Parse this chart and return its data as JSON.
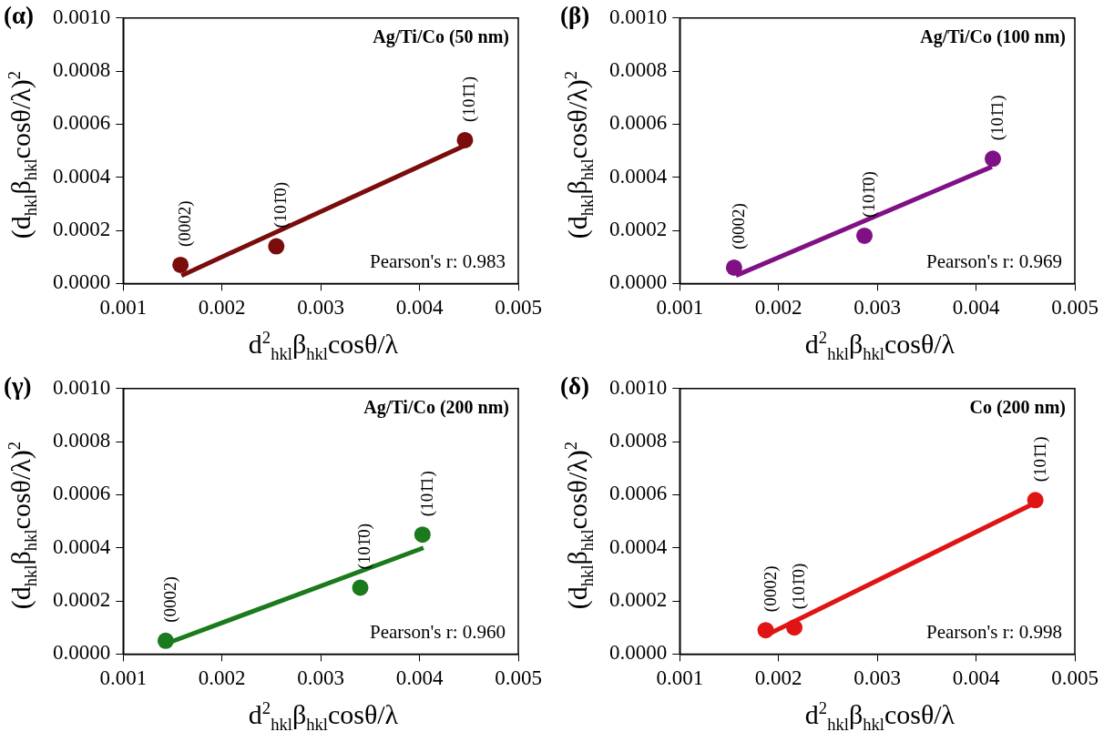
{
  "chart_data": [
    {
      "type": "scatter",
      "title": "(α)",
      "subtitle": "Ag/Ti/Co (50 nm)",
      "xlabel": "d$^{2}$$_{hkl}$β$_{hkl}$cosθ/λ",
      "ylabel": "(d$_{hkl}$β$_{hkl}$cosθ/λ)$^{2}$",
      "xlim": [
        0.001,
        0.005
      ],
      "xticks": [
        0.001,
        0.002,
        0.003,
        0.004,
        0.005
      ],
      "ylim": [
        0,
        0.001
      ],
      "yticks": [
        {
          "value": 0,
          "label": "0.0000"
        },
        {
          "value": 0.0002,
          "label": "0.0002"
        },
        {
          "value": 0.0004,
          "label": "0.0004"
        },
        {
          "value": 0.0006,
          "label": "0.0006"
        },
        {
          "value": 0.0008,
          "label": "0.0008"
        },
        {
          "value": 0.001,
          "label": "0.0010"
        }
      ],
      "grid": false,
      "legend": false,
      "series": [
        {
          "marker": "circle",
          "color": "#7a0c0c",
          "x": [
            0.00158,
            0.00255,
            0.00446
          ],
          "values": [
            7e-05,
            0.00014,
            0.00054
          ]
        },
        {
          "type": "line",
          "marker": "none",
          "line_style": "solid",
          "color": "#7a0c0c",
          "x": [
            0.00159,
            0.00446
          ],
          "values": [
            3e-05,
            0.00052
          ]
        }
      ],
      "annotations": [
        {
          "text": "(0002)",
          "x": 0.00158,
          "y": 7e-05
        },
        {
          "text": "(101̄0)",
          "x": 0.00255,
          "y": 0.00014
        },
        {
          "text": "(101̄1)",
          "x": 0.00446,
          "y": 0.00054
        },
        "Pearson's r: 0.983"
      ]
    },
    {
      "type": "scatter",
      "title": "(β)",
      "subtitle": "Ag/Ti/Co (100 nm)",
      "xlabel": "d$^{2}$$_{hkl}$β$_{hkl}$cosθ/λ",
      "ylabel": "(d$_{hkl}$β$_{hkl}$cosθ/λ)$^{2}$",
      "xlim": [
        0.001,
        0.005
      ],
      "xticks": [
        0.001,
        0.002,
        0.003,
        0.004,
        0.005
      ],
      "ylim": [
        0,
        0.001
      ],
      "yticks": [
        {
          "value": 0,
          "label": "0.0000"
        },
        {
          "value": 0.0002,
          "label": "0.0002"
        },
        {
          "value": 0.0004,
          "label": "0.0004"
        },
        {
          "value": 0.0006,
          "label": "0.0006"
        },
        {
          "value": 0.0008,
          "label": "0.0008"
        },
        {
          "value": 0.001,
          "label": "0.0010"
        }
      ],
      "grid": false,
      "legend": false,
      "series": [
        {
          "marker": "circle",
          "color": "#7f1184",
          "x": [
            0.00155,
            0.00287,
            0.00417
          ],
          "values": [
            6e-05,
            0.00018,
            0.00047
          ]
        },
        {
          "type": "line",
          "marker": "none",
          "line_style": "solid",
          "color": "#7f1184",
          "x": [
            0.00157,
            0.00416
          ],
          "values": [
            3e-05,
            0.00044
          ]
        }
      ],
      "annotations": [
        {
          "text": "(0002)",
          "x": 0.00155,
          "y": 6e-05
        },
        {
          "text": "(101̄0)",
          "x": 0.00287,
          "y": 0.00018
        },
        {
          "text": "(101̄1)",
          "x": 0.00417,
          "y": 0.00047
        },
        "Pearson's r: 0.969"
      ]
    },
    {
      "type": "scatter",
      "title": "(γ)",
      "subtitle": "Ag/Ti/Co (200 nm)",
      "xlabel": "d$^{2}$$_{hkl}$β$_{hkl}$cosθ/λ",
      "ylabel": "(d$_{hkl}$β$_{hkl}$cosθ/λ)$^{2}$",
      "xlim": [
        0.001,
        0.005
      ],
      "xticks": [
        0.001,
        0.002,
        0.003,
        0.004,
        0.005
      ],
      "ylim": [
        0,
        0.001
      ],
      "yticks": [
        {
          "value": 0,
          "label": "0.0000"
        },
        {
          "value": 0.0002,
          "label": "0.0002"
        },
        {
          "value": 0.0004,
          "label": "0.0004"
        },
        {
          "value": 0.0006,
          "label": "0.0006"
        },
        {
          "value": 0.0008,
          "label": "0.0008"
        },
        {
          "value": 0.001,
          "label": "0.0010"
        }
      ],
      "grid": false,
      "legend": false,
      "series": [
        {
          "marker": "circle",
          "color": "#1b7a1b",
          "x": [
            0.00143,
            0.0034,
            0.00403
          ],
          "values": [
            5e-05,
            0.00025,
            0.00045
          ]
        },
        {
          "type": "line",
          "marker": "none",
          "line_style": "solid",
          "color": "#1b7a1b",
          "x": [
            0.00144,
            0.00404
          ],
          "values": [
            4e-05,
            0.0004
          ]
        }
      ],
      "annotations": [
        {
          "text": "(0002)",
          "x": 0.00143,
          "y": 5e-05
        },
        {
          "text": "(101̄0)",
          "x": 0.0034,
          "y": 0.00025
        },
        {
          "text": "(101̄1)",
          "x": 0.00403,
          "y": 0.00045
        },
        "Pearson's r: 0.960"
      ]
    },
    {
      "type": "scatter",
      "title": "(δ)",
      "subtitle": "Co (200 nm)",
      "xlabel": "d$^{2}$$_{hkl}$β$_{hkl}$cosθ/λ",
      "ylabel": "(d$_{hkl}$β$_{hkl}$cosθ/λ)$^{2}$",
      "xlim": [
        0.001,
        0.005
      ],
      "xticks": [
        0.001,
        0.002,
        0.003,
        0.004,
        0.005
      ],
      "ylim": [
        0,
        0.001
      ],
      "yticks": [
        {
          "value": 0,
          "label": "0.0000"
        },
        {
          "value": 0.0002,
          "label": "0.0002"
        },
        {
          "value": 0.0004,
          "label": "0.0004"
        },
        {
          "value": 0.0006,
          "label": "0.0006"
        },
        {
          "value": 0.0008,
          "label": "0.0008"
        },
        {
          "value": 0.001,
          "label": "0.0010"
        }
      ],
      "grid": false,
      "legend": false,
      "series": [
        {
          "marker": "circle",
          "color": "#e01414",
          "x": [
            0.00187,
            0.00216,
            0.0046
          ],
          "values": [
            9e-05,
            0.0001,
            0.00058
          ]
        },
        {
          "type": "line",
          "marker": "none",
          "line_style": "solid",
          "color": "#e01414",
          "x": [
            0.00187,
            0.0046
          ],
          "values": [
            7e-05,
            0.00057
          ]
        }
      ],
      "annotations": [
        {
          "text": "(0002)",
          "x": 0.00187,
          "y": 9e-05
        },
        {
          "text": "(101̄0)",
          "x": 0.00216,
          "y": 0.0001
        },
        {
          "text": "(101̄1)",
          "x": 0.0046,
          "y": 0.00058
        },
        "Pearson's r: 0.998"
      ]
    }
  ]
}
